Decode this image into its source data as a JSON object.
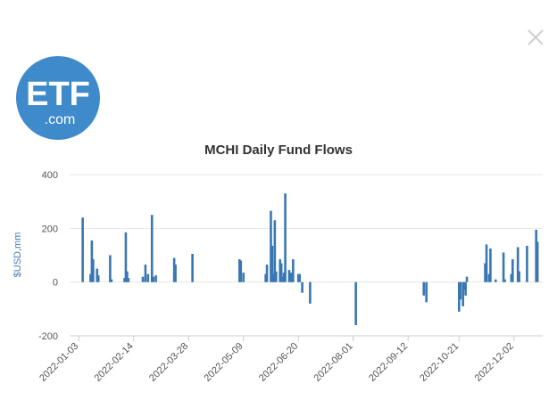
{
  "window": {
    "close_icon": "close-icon",
    "logo": {
      "text": "ETF",
      "subtext": ".com",
      "color": "#3f8acb"
    }
  },
  "chart_data": {
    "type": "bar",
    "title": "MCHI Daily Fund Flows",
    "ylabel": "$USD,mm",
    "xlabel": "",
    "ylim": [
      -200,
      400
    ],
    "yticks": [
      -200,
      0,
      200,
      400
    ],
    "xticks": [
      "2022-01-03",
      "2022-02-14",
      "2022-03-28",
      "2022-05-09",
      "2022-06-20",
      "2022-08-01",
      "2022-09-12",
      "2022-10-21",
      "2022-12-02"
    ],
    "grid": "horizontal",
    "legend": "none",
    "bar_color": "#3a77b2",
    "series": [
      {
        "x": [
          "2022-01-06",
          "2022-01-12",
          "2022-01-13",
          "2022-01-14",
          "2022-01-17",
          "2022-01-18",
          "2022-01-27",
          "2022-01-28",
          "2022-02-07",
          "2022-02-08",
          "2022-02-09",
          "2022-02-10",
          "2022-02-21",
          "2022-02-23",
          "2022-02-25",
          "2022-02-28",
          "2022-03-01",
          "2022-03-03",
          "2022-03-17",
          "2022-03-18",
          "2022-03-31",
          "2022-05-06",
          "2022-05-07",
          "2022-05-09",
          "2022-05-26",
          "2022-05-27",
          "2022-05-30",
          "2022-05-31",
          "2022-06-01",
          "2022-06-02",
          "2022-06-03",
          "2022-06-06",
          "2022-06-07",
          "2022-06-08",
          "2022-06-09",
          "2022-06-10",
          "2022-06-13",
          "2022-06-14",
          "2022-06-15",
          "2022-06-16",
          "2022-06-20",
          "2022-06-21",
          "2022-06-23",
          "2022-06-29",
          "2022-08-03",
          "2022-09-24",
          "2022-09-26",
          "2022-10-21",
          "2022-10-22",
          "2022-10-24",
          "2022-10-25",
          "2022-10-26",
          "2022-10-27",
          "2022-11-10",
          "2022-11-11",
          "2022-11-13",
          "2022-11-14",
          "2022-11-18",
          "2022-11-24",
          "2022-11-25",
          "2022-11-30",
          "2022-12-01",
          "2022-12-05",
          "2022-12-06",
          "2022-12-12",
          "2022-12-19",
          "2022-12-20"
        ],
        "y": [
          240,
          30,
          155,
          85,
          50,
          25,
          100,
          10,
          15,
          185,
          40,
          15,
          20,
          65,
          30,
          250,
          20,
          25,
          90,
          65,
          105,
          85,
          80,
          35,
          30,
          65,
          265,
          135,
          30,
          230,
          40,
          85,
          70,
          20,
          35,
          330,
          45,
          35,
          35,
          85,
          30,
          30,
          -40,
          -80,
          -160,
          -50,
          -75,
          -110,
          -65,
          -90,
          -30,
          -50,
          20,
          70,
          140,
          30,
          125,
          10,
          110,
          10,
          30,
          85,
          130,
          40,
          135,
          195,
          150
        ]
      }
    ]
  }
}
